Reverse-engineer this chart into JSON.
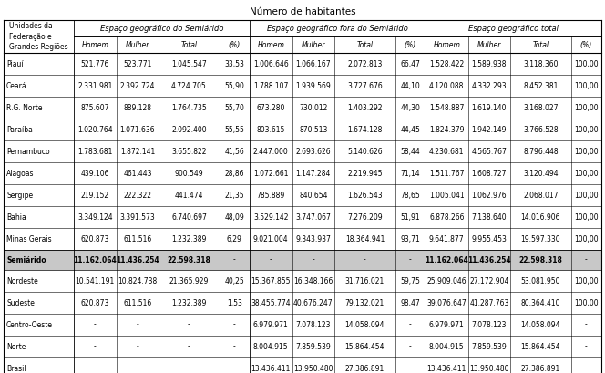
{
  "title": "Número de habitantes",
  "group_headers": [
    "Espaço geográfico do Semiárido",
    "Espaço geográfico fora do Semiárido",
    "Espaço geográfico total"
  ],
  "col_headers": [
    "Homem",
    "Mulher",
    "Total",
    "(%)",
    "Homem",
    "Mulher",
    "Total",
    "(%)",
    "Homem",
    "Mulher",
    "Total",
    "(%)"
  ],
  "label_header": "Unidades da\nFederação e\nGrandes Regiões",
  "rows": [
    [
      "Piauí",
      "521.776",
      "523.771",
      "1.045.547",
      "33,53",
      "1.006.646",
      "1.066.167",
      "2.072.813",
      "66,47",
      "1.528.422",
      "1.589.938",
      "3.118.360",
      "100,00"
    ],
    [
      "Ceará",
      "2.331.981",
      "2.392.724",
      "4.724.705",
      "55,90",
      "1.788.107",
      "1.939.569",
      "3.727.676",
      "44,10",
      "4.120.088",
      "4.332.293",
      "8.452.381",
      "100,00"
    ],
    [
      "R.G. Norte",
      "875.607",
      "889.128",
      "1.764.735",
      "55,70",
      "673.280",
      "730.012",
      "1.403.292",
      "44,30",
      "1.548.887",
      "1.619.140",
      "3.168.027",
      "100,00"
    ],
    [
      "Paraíba",
      "1.020.764",
      "1.071.636",
      "2.092.400",
      "55,55",
      "803.615",
      "870.513",
      "1.674.128",
      "44,45",
      "1.824.379",
      "1.942.149",
      "3.766.528",
      "100,00"
    ],
    [
      "Pernambuco",
      "1.783.681",
      "1.872.141",
      "3.655.822",
      "41,56",
      "2.447.000",
      "2.693.626",
      "5.140.626",
      "58,44",
      "4.230.681",
      "4.565.767",
      "8.796.448",
      "100,00"
    ],
    [
      "Alagoas",
      "439.106",
      "461.443",
      "900.549",
      "28,86",
      "1.072.661",
      "1.147.284",
      "2.219.945",
      "71,14",
      "1.511.767",
      "1.608.727",
      "3.120.494",
      "100,00"
    ],
    [
      "Sergipe",
      "219.152",
      "222.322",
      "441.474",
      "21,35",
      "785.889",
      "840.654",
      "1.626.543",
      "78,65",
      "1.005.041",
      "1.062.976",
      "2.068.017",
      "100,00"
    ],
    [
      "Bahia",
      "3.349.124",
      "3.391.573",
      "6.740.697",
      "48,09",
      "3.529.142",
      "3.747.067",
      "7.276.209",
      "51,91",
      "6.878.266",
      "7.138.640",
      "14.016.906",
      "100,00"
    ],
    [
      "Minas Gerais",
      "620.873",
      "611.516",
      "1.232.389",
      "6,29",
      "9.021.004",
      "9.343.937",
      "18.364.941",
      "93,71",
      "9.641.877",
      "9.955.453",
      "19.597.330",
      "100,00"
    ]
  ],
  "semiarido_row": [
    "Semiárido",
    "11.162.064",
    "11.436.254",
    "22.598.318",
    "-",
    "-",
    "-",
    "-",
    "-",
    "11.162.064",
    "11.436.254",
    "22.598.318",
    "-"
  ],
  "region_rows": [
    [
      "Nordeste",
      "10.541.191",
      "10.824.738",
      "21.365.929",
      "40,25",
      "15.367.855",
      "16.348.166",
      "31.716.021",
      "59,75",
      "25.909.046",
      "27.172.904",
      "53.081.950",
      "100,00"
    ],
    [
      "Sudeste",
      "620.873",
      "611.516",
      "1.232.389",
      "1,53",
      "38.455.774",
      "40.676.247",
      "79.132.021",
      "98,47",
      "39.076.647",
      "41.287.763",
      "80.364.410",
      "100,00"
    ],
    [
      "Centro-Oeste",
      "-",
      "-",
      "-",
      "-",
      "6.979.971",
      "7.078.123",
      "14.058.094",
      "-",
      "6.979.971",
      "7.078.123",
      "14.058.094",
      "-"
    ],
    [
      "Norte",
      "-",
      "-",
      "-",
      "-",
      "8.004.915",
      "7.859.539",
      "15.864.454",
      "-",
      "8.004.915",
      "7.859.539",
      "15.864.454",
      "-"
    ],
    [
      "Brasil",
      "-",
      "-",
      "-",
      "-",
      "13.436.411",
      "13.950.480",
      "27.386.891",
      "-",
      "13.436.411",
      "13.950.480",
      "27.386.891",
      "-"
    ]
  ],
  "dot_char": "-",
  "bg_semiarido": "#c8c8c8",
  "font_size": 5.5,
  "header_font_size": 6.0,
  "title_font_size": 7.5
}
